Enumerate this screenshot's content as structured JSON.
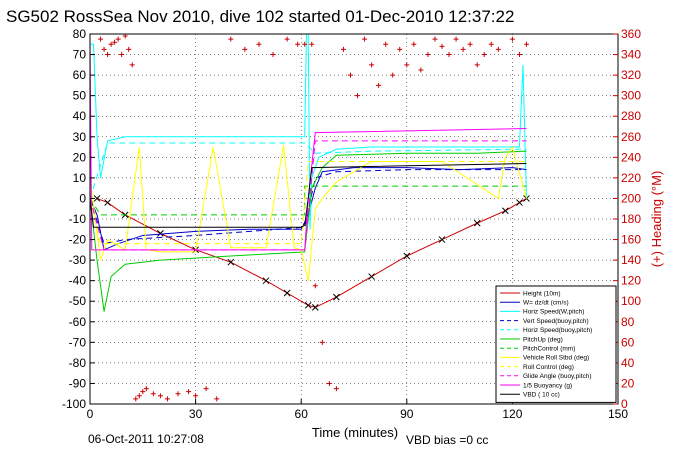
{
  "chart_data": {
    "type": "line",
    "title": "SG502 RossSea Nov 2010, dive 102 started 01-Dec-2010 12:37:22",
    "xlabel": "Time (minutes)",
    "ylabel_right": "(+) Heading (°M)",
    "xlim": [
      0,
      150
    ],
    "ylim": [
      -100,
      80
    ],
    "ylim_right": [
      0,
      360
    ],
    "x_ticks": [
      "0",
      "30",
      "60",
      "90",
      "120",
      "150"
    ],
    "y_ticks": [
      "80",
      "70",
      "60",
      "50",
      "40",
      "30",
      "20",
      "10",
      "0",
      "-10",
      "-20",
      "-30",
      "-40",
      "-50",
      "-60",
      "-70",
      "-80",
      "-90",
      "-100"
    ],
    "y_ticks_right": [
      "360",
      "340",
      "320",
      "300",
      "280",
      "260",
      "240",
      "220",
      "200",
      "180",
      "160",
      "140",
      "120",
      "100",
      "80",
      "60",
      "40",
      "20",
      "0"
    ],
    "grid": true,
    "legend_position": "bottom-right",
    "footer_left": "06-Oct-2011 10:27:08",
    "footer_right": "VBD bias =0 cc",
    "colors": {
      "height": "#cc0000",
      "w": "#0000cc",
      "horz_speed": "#00ffff",
      "vert_speed_buoy": "#0000cc",
      "horz_speed_buoy": "#00ffff",
      "pitch_up": "#00cc00",
      "pitch_control": "#00cc00",
      "vehicle_roll": "#ffff00",
      "roll_control": "#ffff00",
      "glide_angle": "#ff00ff",
      "buoyancy": "#ff00ff",
      "vbd": "#000000",
      "heading": "#cc0000"
    },
    "series": [
      {
        "name": "Height (10m)",
        "key": "height",
        "dash": "",
        "marker": "x",
        "x": [
          2,
          5,
          10,
          20,
          30,
          40,
          50,
          56,
          62,
          64,
          70,
          80,
          90,
          100,
          110,
          118,
          122,
          124
        ],
        "y": [
          0,
          -2,
          -8,
          -17,
          -25,
          -31,
          -40,
          -46,
          -52,
          -53,
          -48,
          -38,
          -28,
          -20,
          -12,
          -6,
          -2,
          0
        ]
      },
      {
        "name": "W= dz/dt (cm/s)",
        "key": "w",
        "dash": "",
        "x": [
          0,
          2,
          4,
          8,
          15,
          30,
          45,
          60,
          62,
          64,
          66,
          75,
          90,
          105,
          120,
          124
        ],
        "y": [
          0,
          -8,
          -25,
          -22,
          -18,
          -16,
          -15,
          -15,
          -8,
          5,
          13,
          15,
          15,
          14,
          15,
          14
        ]
      },
      {
        "name": "Horiz Speed(W,pitch)",
        "key": "horz_speed",
        "dash": "",
        "x": [
          0,
          1,
          2,
          3,
          5,
          10,
          20,
          40,
          61,
          61.5,
          62,
          62.5,
          63,
          65,
          70,
          80,
          100,
          122,
          123,
          124
        ],
        "y": [
          75,
          75,
          30,
          10,
          28,
          30,
          30,
          30,
          30,
          80,
          80,
          -15,
          10,
          20,
          24,
          25,
          25,
          25,
          65,
          0
        ]
      },
      {
        "name": "Vert Speed(buoy,pitch)",
        "key": "vert_speed_buoy",
        "dash": "6,4",
        "x": [
          0,
          4,
          10,
          30,
          61,
          64,
          70,
          90,
          124
        ],
        "y": [
          0,
          -22,
          -20,
          -18,
          -14,
          10,
          13,
          14,
          14
        ]
      },
      {
        "name": "Horiz Speed(buoy,pitch)",
        "key": "horz_speed_buoy",
        "dash": "6,4",
        "x": [
          0,
          5,
          30,
          61,
          64,
          80,
          124
        ],
        "y": [
          0,
          27,
          27,
          27,
          22,
          23,
          24
        ]
      },
      {
        "name": "PitchUp (deg)",
        "key": "pitch_up",
        "dash": "",
        "x": [
          0,
          2,
          4,
          6,
          10,
          20,
          40,
          61,
          63,
          66,
          70,
          90,
          110,
          124
        ],
        "y": [
          0,
          -30,
          -55,
          -38,
          -32,
          -30,
          -28,
          -26,
          5,
          15,
          21,
          22,
          22,
          23
        ]
      },
      {
        "name": "PitchControl (mm)",
        "key": "pitch_control",
        "dash": "6,4",
        "x": [
          0,
          3,
          61,
          61,
          124
        ],
        "y": [
          0,
          -8,
          -8,
          6,
          6
        ]
      },
      {
        "name": "Vehicle Roll Stbd (deg)",
        "key": "vehicle_roll",
        "dash": "",
        "x": [
          0,
          3,
          5,
          10,
          14,
          16,
          20,
          30,
          35,
          40,
          50,
          55,
          58,
          60,
          62,
          64,
          66,
          70,
          80,
          100,
          116,
          118,
          120,
          124
        ],
        "y": [
          10,
          -30,
          -20,
          -25,
          25,
          -25,
          -26,
          -26,
          25,
          -24,
          -24,
          26,
          -24,
          -25,
          -40,
          -5,
          0,
          8,
          18,
          18,
          0,
          20,
          25,
          0
        ]
      },
      {
        "name": "Roll Control (deg)",
        "key": "roll_control",
        "dash": "6,4",
        "x": [
          0,
          3,
          60,
          62,
          124
        ],
        "y": [
          0,
          -22,
          -22,
          18,
          18
        ]
      },
      {
        "name": "Glide Angle (buoy,pitch)",
        "key": "glide_angle",
        "dash": "6,4",
        "x": [
          0,
          4,
          30,
          61,
          64,
          124
        ],
        "y": [
          0,
          -25,
          -25,
          -25,
          28,
          28
        ]
      },
      {
        "name": "1/5 Buoyancy (g)",
        "key": "buoyancy",
        "dash": "",
        "x": [
          0,
          0.5,
          1,
          2,
          6,
          61,
          62,
          64,
          124
        ],
        "y": [
          75,
          -25,
          -25,
          -25,
          -25,
          -25,
          0,
          32,
          34
        ]
      },
      {
        "name": "VBD ( 10 cc)",
        "key": "vbd",
        "dash": "",
        "x": [
          0,
          1,
          60,
          61,
          62,
          63,
          124
        ],
        "y": [
          0,
          -14,
          -14,
          -13,
          0,
          15,
          17
        ]
      }
    ],
    "heading": {
      "name": "Heading",
      "key": "heading",
      "x": [
        3,
        4,
        5,
        6,
        7,
        8,
        9,
        10,
        11,
        12,
        13,
        14,
        15,
        16,
        18,
        20,
        22,
        25,
        28,
        30,
        33,
        36,
        40,
        44,
        48,
        52,
        56,
        59,
        61,
        63,
        64,
        66,
        68,
        70,
        72,
        74,
        76,
        78,
        80,
        82,
        84,
        86,
        88,
        90,
        92,
        94,
        96,
        98,
        100,
        102,
        104,
        106,
        108,
        110,
        112,
        114,
        116,
        118,
        120,
        122,
        124
      ],
      "y": [
        355,
        345,
        340,
        350,
        352,
        355,
        340,
        358,
        345,
        330,
        5,
        8,
        12,
        15,
        10,
        8,
        5,
        10,
        12,
        8,
        15,
        5,
        355,
        345,
        350,
        340,
        355,
        350,
        350,
        350,
        115,
        60,
        20,
        15,
        345,
        320,
        300,
        355,
        330,
        310,
        350,
        320,
        345,
        330,
        350,
        325,
        340,
        355,
        348,
        340,
        355,
        345,
        350,
        330,
        340,
        350,
        345,
        20,
        355,
        340,
        350
      ]
    }
  }
}
